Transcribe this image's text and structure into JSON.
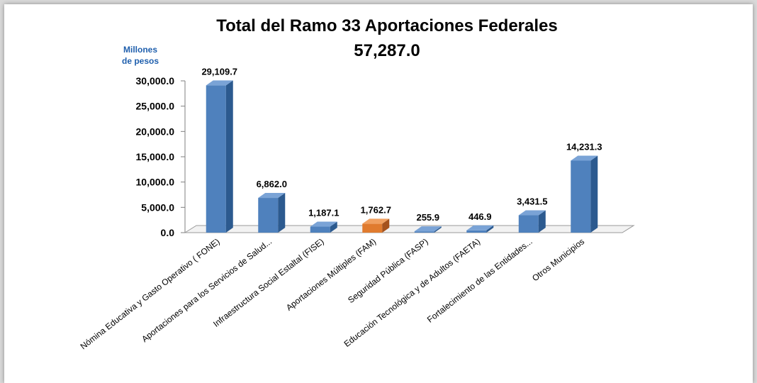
{
  "chart_data": {
    "type": "bar",
    "title": "Total del Ramo 33 Aportaciones Federales",
    "subtitle": "57,287.0",
    "ylabel_line1": "Millones",
    "ylabel_line2": "de pesos",
    "ylim": [
      0,
      30000
    ],
    "yticks": [
      "0.0",
      "5,000.0",
      "10,000.0",
      "15,000.0",
      "20,000.0",
      "25,000.0",
      "30,000.0"
    ],
    "categories": [
      "Nómina Educativa y Gasto Operativo ( FONE)",
      "Aportaciones para los Servicios de Salud...",
      "Infraestructura Social Estaltal (FISE)",
      "Aportaciones Múltiples (FAM)",
      "Seguridad Pública (FASP)",
      "Educación Tecnológica y de Adultos (FAETA)",
      "Fortalecimiento de las Entidades...",
      "Otros Municipios"
    ],
    "values": [
      29109.7,
      6862.0,
      1187.1,
      1762.7,
      255.9,
      446.9,
      3431.5,
      14231.3
    ],
    "value_labels": [
      "29,109.7",
      "6,862.0",
      "1,187.1",
      "1,762.7",
      "255.9",
      "446.9",
      "3,431.5",
      "14,231.3"
    ],
    "highlight_index": 3,
    "colors": {
      "bar": "#4f81bd",
      "bar_dark": "#2c5a8f",
      "bar_top": "#7aa3d6",
      "highlight": "#e07b2e",
      "highlight_dark": "#a5521c",
      "highlight_top": "#f0a060"
    },
    "grid": false,
    "legend": "none"
  }
}
